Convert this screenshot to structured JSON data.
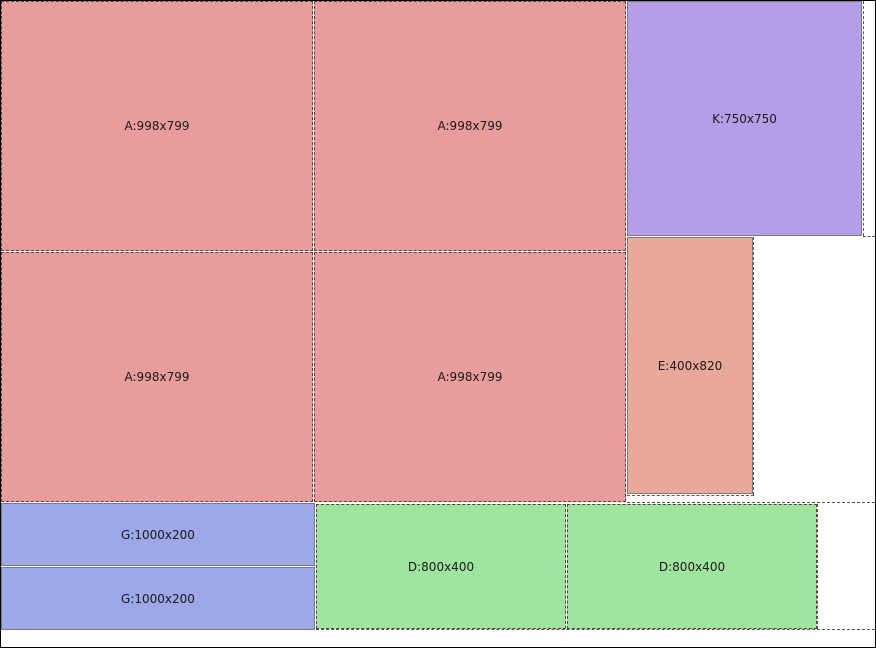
{
  "sheet": {
    "pieces": [
      {
        "id": "a1",
        "label": "A:998x799",
        "color": "#e89c9b"
      },
      {
        "id": "a2",
        "label": "A:998x799",
        "color": "#e89c9b"
      },
      {
        "id": "a3",
        "label": "A:998x799",
        "color": "#e89c9b"
      },
      {
        "id": "a4",
        "label": "A:998x799",
        "color": "#e89c9b"
      },
      {
        "id": "k1",
        "label": "K:750x750",
        "color": "#b49ee8"
      },
      {
        "id": "e1",
        "label": "E:400x820",
        "color": "#e8a89a"
      },
      {
        "id": "g1",
        "label": "G:1000x200",
        "color": "#9ca8e8"
      },
      {
        "id": "g2",
        "label": "G:1000x200",
        "color": "#9ca8e8"
      },
      {
        "id": "d1",
        "label": "D:800x400",
        "color": "#9fe49f"
      },
      {
        "id": "d2",
        "label": "D:800x400",
        "color": "#9fe49f"
      }
    ]
  }
}
